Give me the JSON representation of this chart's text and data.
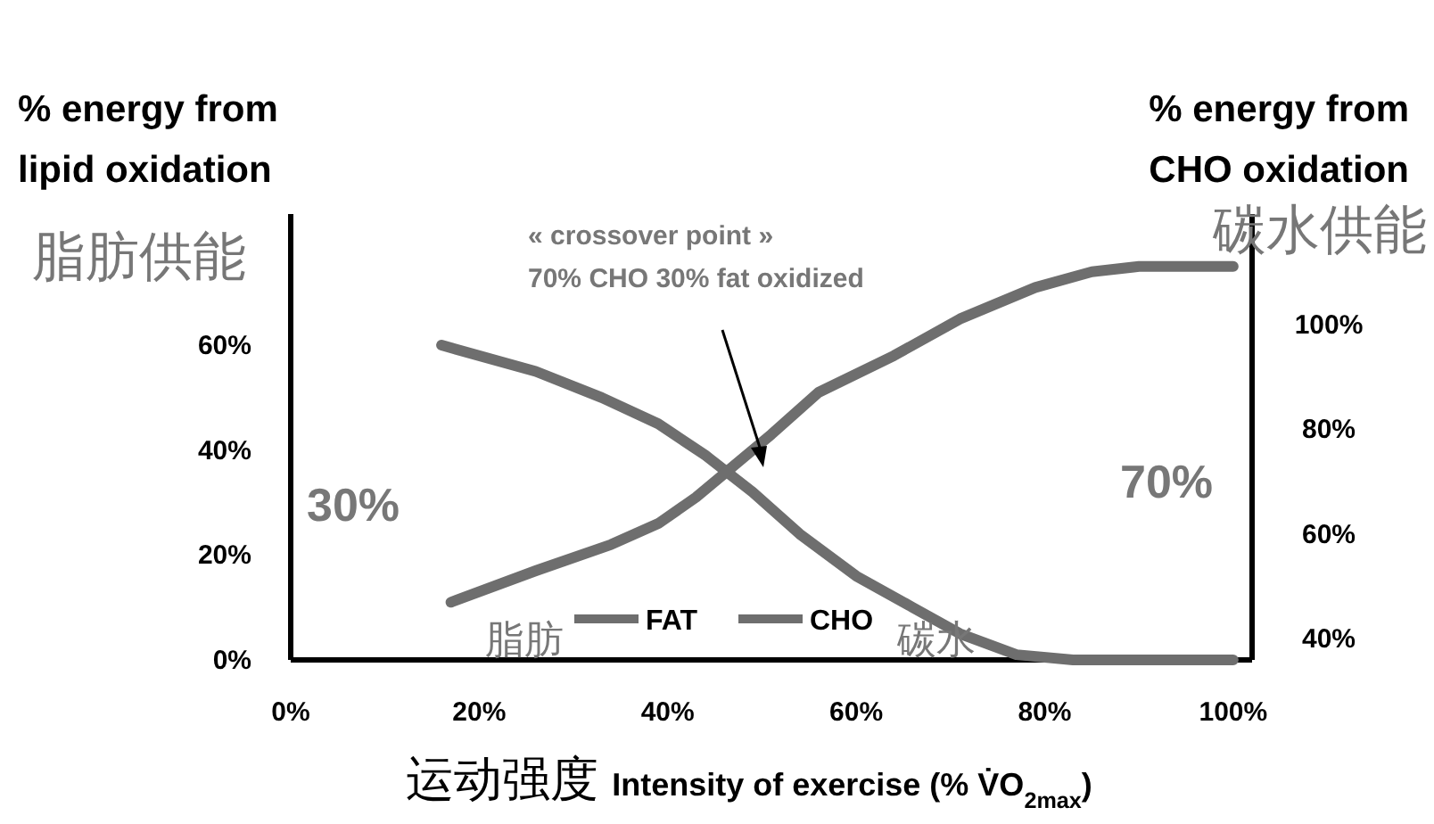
{
  "chart_data": {
    "type": "line",
    "ylabel": "% energy from\nlipid oxidation",
    "y2label": "% energy from\nCHO oxidation",
    "xlabel": "运动强度 Intensity of exercise (% V̇O$_{2max}$)",
    "xlim": [
      0,
      102
    ],
    "xticks": [
      {
        "value": 0,
        "label": "0%"
      },
      {
        "value": 20,
        "label": "20%"
      },
      {
        "value": 40,
        "label": "40%"
      },
      {
        "value": 60,
        "label": "60%"
      },
      {
        "value": 80,
        "label": "80%"
      },
      {
        "value": 100,
        "label": "100%"
      }
    ],
    "ylim": [
      0,
      85
    ],
    "yticks": [
      {
        "value": 0,
        "label": "0%"
      },
      {
        "value": 20,
        "label": "20%"
      },
      {
        "value": 40,
        "label": "40%"
      },
      {
        "value": 60,
        "label": "60%"
      }
    ],
    "y2lim": [
      36,
      121
    ],
    "y2ticks": [
      {
        "value": 40,
        "label": "40%"
      },
      {
        "value": 60,
        "label": "60%"
      },
      {
        "value": 80,
        "label": "80%"
      },
      {
        "value": 100,
        "label": "100%"
      }
    ],
    "series": [
      {
        "name": "FAT",
        "color": "#6e6e6e",
        "x": [
          16,
          26,
          33,
          39,
          44,
          49,
          54,
          60,
          66,
          71,
          77,
          83,
          100
        ],
        "values": [
          60,
          55,
          50,
          45,
          39,
          32,
          24,
          16,
          10,
          5,
          1,
          0,
          0
        ]
      },
      {
        "name": "CHO",
        "color": "#6e6e6e",
        "axis": "y2",
        "x": [
          17,
          26,
          34,
          39,
          43,
          47,
          51,
          56,
          64,
          71,
          79,
          85,
          90,
          100
        ],
        "values": [
          47,
          53,
          58,
          62,
          67,
          73,
          79,
          87,
          94,
          101,
          107,
          110,
          111,
          111
        ]
      }
    ],
    "annotations": [
      "« crossover point »\n70% CHO 30% fat oxidized",
      "30%",
      "70%",
      "脂肪供能",
      "碳水供能",
      "脂肪",
      "碳水"
    ],
    "legend": "bottom",
    "grid": false,
    "marker": "none",
    "line_style": "solid"
  }
}
